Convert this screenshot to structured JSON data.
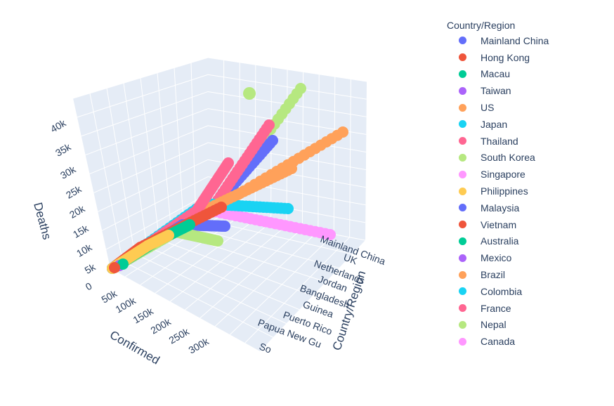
{
  "chart_data": {
    "type": "scatter3d",
    "legend_title": "Country/Region",
    "x_axis": {
      "label": "Confirmed",
      "ticks": [
        "50k",
        "100k",
        "150k",
        "200k",
        "250k",
        "300k"
      ]
    },
    "y_axis": {
      "label": "Country/Region",
      "ticks": [
        "Mainland China",
        "UK",
        "Netherlands",
        "Jordan",
        "Bangladesh",
        "Guinea",
        "Puerto Rico",
        "Papua New Gu",
        "So"
      ]
    },
    "z_axis": {
      "label": "Deaths",
      "ticks": [
        "0",
        "5k",
        "10k",
        "15k",
        "20k",
        "25k",
        "30k",
        "35k",
        "40k"
      ],
      "range": [
        0,
        42000
      ]
    },
    "series": [
      {
        "name": "Mainland China",
        "color": "#636efa"
      },
      {
        "name": "Hong Kong",
        "color": "#EF553B"
      },
      {
        "name": "Macau",
        "color": "#00cc96"
      },
      {
        "name": "Taiwan",
        "color": "#ab63fa"
      },
      {
        "name": "US",
        "color": "#FFA15A"
      },
      {
        "name": "Japan",
        "color": "#19d3f3"
      },
      {
        "name": "Thailand",
        "color": "#FF6692"
      },
      {
        "name": "South Korea",
        "color": "#B6E880"
      },
      {
        "name": "Singapore",
        "color": "#FF97FF"
      },
      {
        "name": "Philippines",
        "color": "#FECB52"
      },
      {
        "name": "Malaysia",
        "color": "#636efa"
      },
      {
        "name": "Vietnam",
        "color": "#EF553B"
      },
      {
        "name": "Australia",
        "color": "#00cc96"
      },
      {
        "name": "Mexico",
        "color": "#ab63fa"
      },
      {
        "name": "Brazil",
        "color": "#FFA15A"
      },
      {
        "name": "Colombia",
        "color": "#19d3f3"
      },
      {
        "name": "France",
        "color": "#FF6692"
      },
      {
        "name": "Nepal",
        "color": "#B6E880"
      },
      {
        "name": "Canada",
        "color": "#FF97FF"
      }
    ],
    "grid": true,
    "legend_position": "right"
  }
}
